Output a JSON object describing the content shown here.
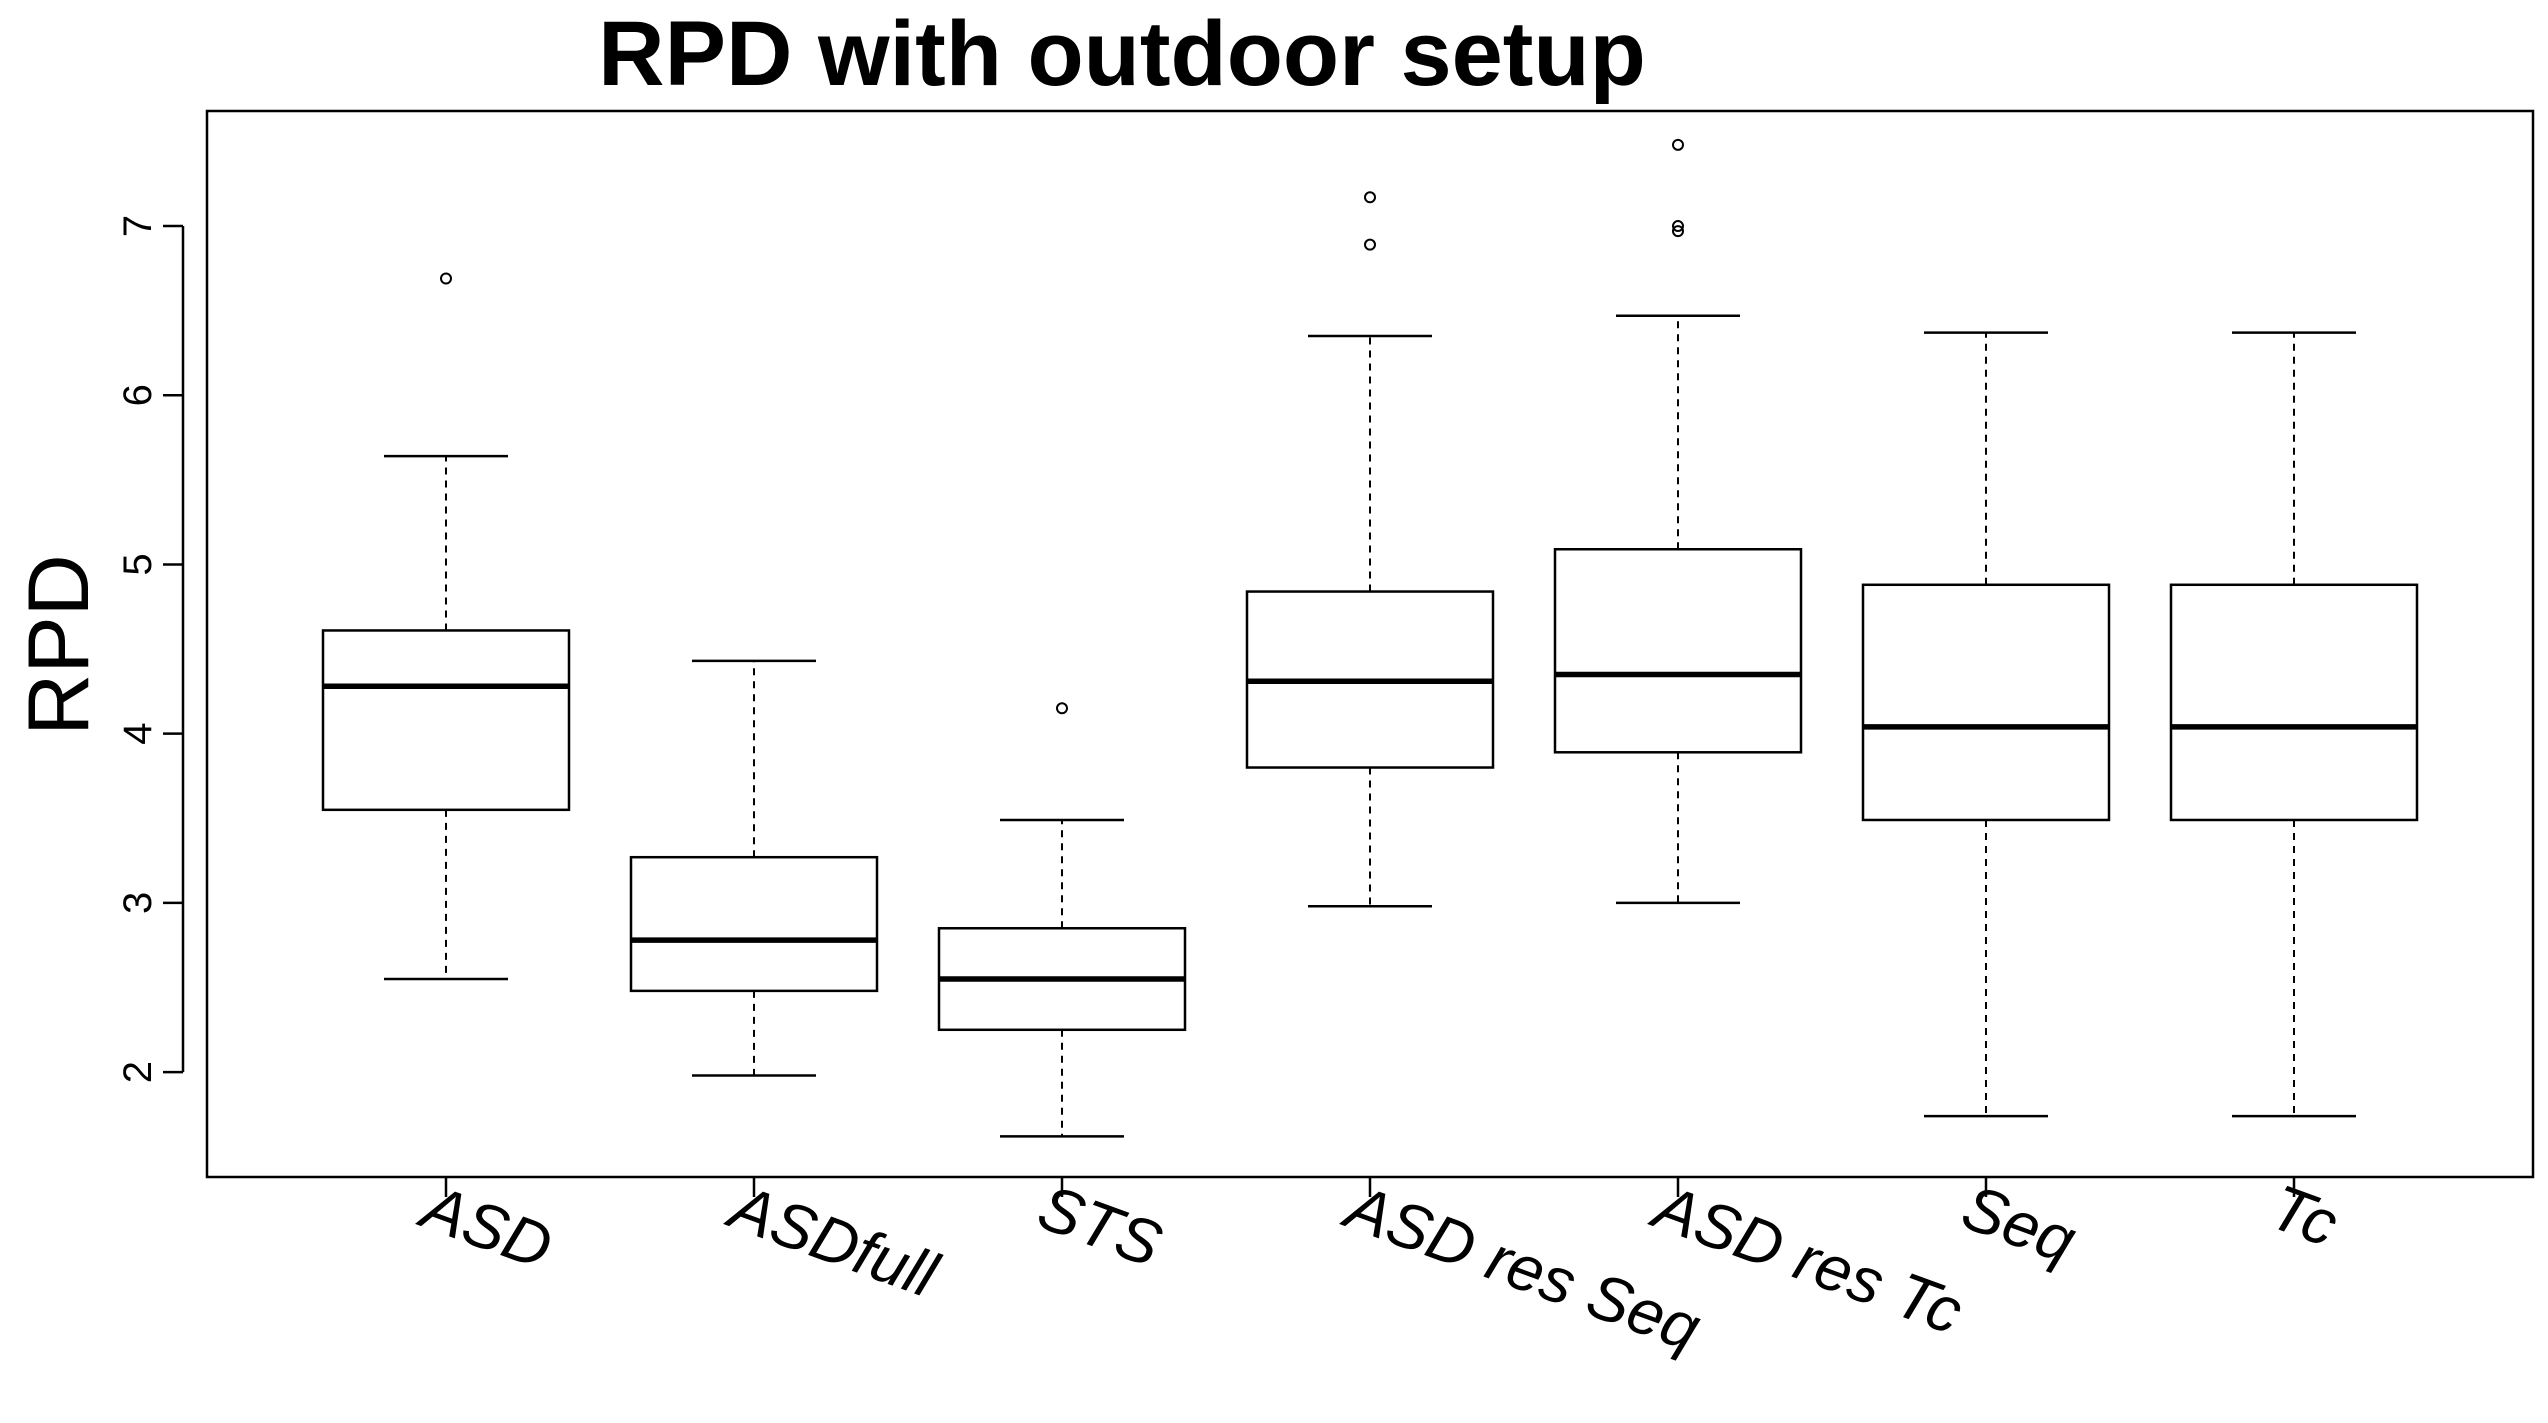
{
  "chart_data": {
    "type": "boxplot",
    "title": "RPD with outdoor setup",
    "xlabel": "",
    "ylabel": "RPD",
    "ylim": [
      1.38,
      7.68
    ],
    "yticks": [
      "2",
      "3",
      "4",
      "5",
      "6",
      "7"
    ],
    "grid": false,
    "categories": [
      "ASD",
      "ASDfull",
      "STS",
      "ASD res Seq",
      "ASD res Tc",
      "Seq",
      "Tc"
    ],
    "boxes": [
      {
        "whisker_low": 2.55,
        "q1": 3.55,
        "median": 4.28,
        "q3": 4.61,
        "whisker_high": 5.64,
        "outliers": [
          6.69
        ]
      },
      {
        "whisker_low": 1.98,
        "q1": 2.48,
        "median": 2.78,
        "q3": 3.27,
        "whisker_high": 4.43,
        "outliers": []
      },
      {
        "whisker_low": 1.62,
        "q1": 2.25,
        "median": 2.55,
        "q3": 2.85,
        "whisker_high": 3.49,
        "outliers": [
          4.15
        ]
      },
      {
        "whisker_low": 2.98,
        "q1": 3.8,
        "median": 4.31,
        "q3": 4.84,
        "whisker_high": 6.35,
        "outliers": [
          6.89,
          7.17
        ]
      },
      {
        "whisker_low": 3.0,
        "q1": 3.89,
        "median": 4.35,
        "q3": 5.09,
        "whisker_high": 6.47,
        "outliers": [
          6.97,
          7.0,
          7.48
        ]
      },
      {
        "whisker_low": 1.74,
        "q1": 3.49,
        "median": 4.04,
        "q3": 4.88,
        "whisker_high": 6.37,
        "outliers": []
      },
      {
        "whisker_low": 1.74,
        "q1": 3.49,
        "median": 4.04,
        "q3": 4.88,
        "whisker_high": 6.37,
        "outliers": []
      }
    ],
    "colors": {
      "stroke": "#000000",
      "fill": "#ffffff"
    }
  }
}
